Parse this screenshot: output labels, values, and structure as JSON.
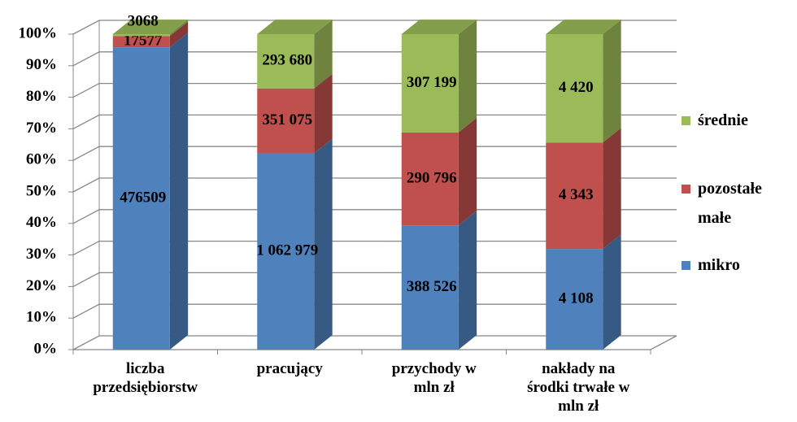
{
  "chart_data": {
    "type": "bar",
    "stack": "percent",
    "categories": [
      "liczba przedsiębiorstw",
      "pracujący",
      "przychody w mln zł",
      "nakłady na środki trwałe w mln zł"
    ],
    "series": [
      {
        "name": "mikro",
        "color": "#4f81bd",
        "values": [
          476509,
          1062979,
          388526,
          4108
        ],
        "value_labels": [
          "476509",
          "1 062 979",
          "388 526",
          "4 108"
        ]
      },
      {
        "name": "pozostałe małe",
        "color": "#c0504d",
        "values": [
          17577,
          351075,
          290796,
          4343
        ],
        "value_labels": [
          "17577",
          "351 075",
          "290 796",
          "4 343"
        ]
      },
      {
        "name": "średnie",
        "color": "#9bbb59",
        "values": [
          3068,
          293680,
          307199,
          4420
        ],
        "value_labels": [
          "3068",
          "293 680",
          "307 199",
          "4 420"
        ]
      }
    ],
    "ylim": [
      0,
      100
    ],
    "yticks": [
      {
        "value": 0,
        "label": "0%"
      },
      {
        "value": 10,
        "label": "10%"
      },
      {
        "value": 20,
        "label": "20%"
      },
      {
        "value": 30,
        "label": "30%"
      },
      {
        "value": 40,
        "label": "40%"
      },
      {
        "value": 50,
        "label": "50%"
      },
      {
        "value": 60,
        "label": "60%"
      },
      {
        "value": 70,
        "label": "70%"
      },
      {
        "value": 80,
        "label": "80%"
      },
      {
        "value": 90,
        "label": "90%"
      },
      {
        "value": 100,
        "label": "100%"
      }
    ],
    "grid": true,
    "legend": "right"
  }
}
